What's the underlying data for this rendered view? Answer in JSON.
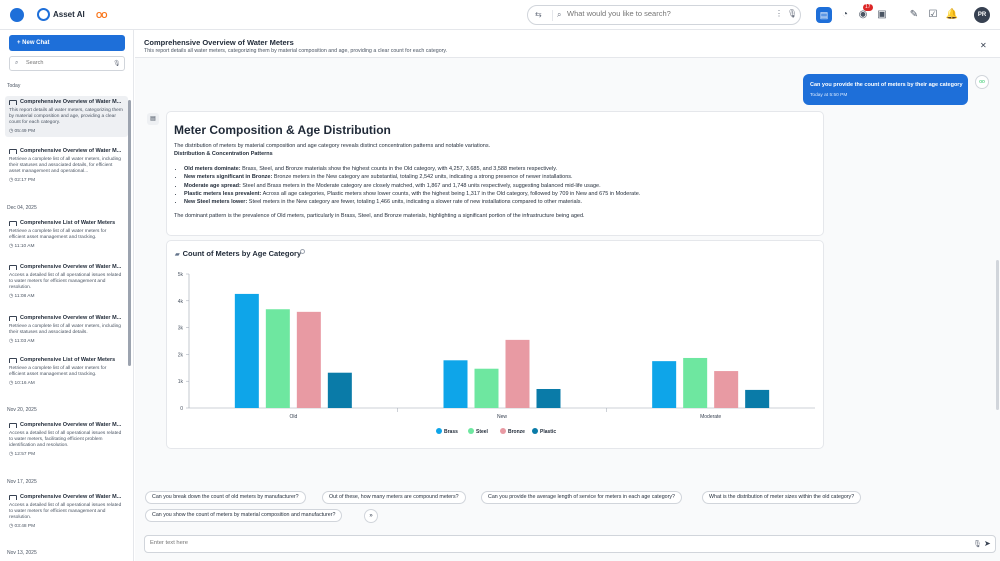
{
  "app": {
    "brand": "Asset AI"
  },
  "search": {
    "placeholder": "What would you like to search?"
  },
  "topbar": {
    "notif_count": "17",
    "avatar": "PR"
  },
  "sidebar": {
    "new_chat": "+ New Chat",
    "search_placeholder": "Search",
    "groups": [
      {
        "label": "Today"
      },
      {
        "label": "Dec 04, 2025"
      },
      {
        "label": "Nov 20, 2025"
      },
      {
        "label": "Nov 17, 2025"
      },
      {
        "label": "Nov 13, 2025"
      }
    ],
    "items": [
      {
        "title": "Comprehensive Overview of Water M...",
        "desc": "This report details all water meters, categorizing them by material composition and age, providing a clear count for each category.",
        "time": "05:49 PM"
      },
      {
        "title": "Comprehensive Overview of Water M...",
        "desc": "Retrieve a complete list of all water meters, including their statuses and associated details, for efficient asset management and operational...",
        "time": "02:17 PM"
      },
      {
        "title": "Comprehensive List of Water Meters",
        "desc": "Retrieve a complete list of all water meters for efficient asset management and tracking.",
        "time": "11:10 AM"
      },
      {
        "title": "Comprehensive Overview of Water M...",
        "desc": "Access a detailed list of all operational issues related to water meters for efficient management and resolution.",
        "time": "11:08 AM"
      },
      {
        "title": "Comprehensive Overview of Water M...",
        "desc": "Retrieve a complete list of all water meters, including their statuses and associated details.",
        "time": "11:03 AM"
      },
      {
        "title": "Comprehensive List of Water Meters",
        "desc": "Retrieve a complete list of all water meters for efficient asset management and tracking.",
        "time": "10:16 AM"
      },
      {
        "title": "Comprehensive Overview of Water M...",
        "desc": "Access a detailed list of all operational issues related to water meters, facilitating efficient problem identification and resolution.",
        "time": "12:57 PM"
      },
      {
        "title": "Comprehensive Overview of Water M...",
        "desc": "Access a detailed list of all operational issues related to water meters for efficient management and resolution.",
        "time": "03:48 PM"
      }
    ]
  },
  "header": {
    "title": "Comprehensive Overview of Water Meters",
    "subtitle": "This report details all water meters, categorizing them by material composition and age, providing a clear count for each category."
  },
  "user_msg": {
    "text": "Can you provide the count of meters by their age category",
    "time": "Today at 5:50 PM"
  },
  "report": {
    "title": "Meter Composition & Age Distribution",
    "intro": "The distribution of meters by material composition and age category reveals distinct concentration patterns and notable variations.",
    "subhead": "Distribution & Concentration Patterns",
    "bullets": [
      {
        "lead": "Old meters dominate:",
        "text": " Brass, Steel, and Bronze materials show the highest counts in the Old category, with 4,257, 3,685, and 3,588 meters respectively."
      },
      {
        "lead": "New meters significant in Bronze:",
        "text": " Bronze meters in the New category are substantial, totaling 2,542 units, indicating a strong presence of newer installations."
      },
      {
        "lead": "Moderate age spread:",
        "text": " Steel and Brass meters in the Moderate category are closely matched, with 1,867 and 1,748 units respectively, suggesting balanced mid-life usage."
      },
      {
        "lead": "Plastic meters less prevalent:",
        "text": " Across all age categories, Plastic meters show lower counts, with the highest being 1,317 in the Old category, followed by 709 in New and 675 in Moderate."
      },
      {
        "lead": "New Steel meters lower:",
        "text": " Steel meters in the New category are fewer, totaling 1,466 units, indicating a slower rate of new installations compared to other materials."
      }
    ],
    "conclusion": "The dominant pattern is the prevalence of Old meters, particularly in Brass, Steel, and Bronze materials, highlighting a significant portion of the infrastructure being aged."
  },
  "chart_data": {
    "type": "bar",
    "title": "Count of Meters by Age Category",
    "categories": [
      "Old",
      "New",
      "Moderate"
    ],
    "series": [
      {
        "name": "Brass",
        "color": "#0ea5e9",
        "values": [
          4257,
          1780,
          1748
        ]
      },
      {
        "name": "Steel",
        "color": "#6ee7a0",
        "values": [
          3685,
          1466,
          1867
        ]
      },
      {
        "name": "Bronze",
        "color": "#e89aa3",
        "values": [
          3588,
          2542,
          1378
        ]
      },
      {
        "name": "Plastic",
        "color": "#0a7ba8",
        "values": [
          1317,
          709,
          675
        ]
      }
    ],
    "ylim": [
      0,
      5000
    ],
    "yticks": [
      0,
      1000,
      2000,
      3000,
      4000,
      5000
    ],
    "ytick_labels": [
      "0",
      "1k",
      "2k",
      "3k",
      "4k",
      "5k"
    ],
    "grid": false,
    "legend": "bottom-center"
  },
  "suggestions": [
    "Can you break down the count of old meters by manufacturer?",
    "Out of these, how many meters are compound meters?",
    "Can you provide the average length of service for meters in each age category?",
    "What is the distribution of meter sizes within the old category?",
    "Can you show the count of meters by material composition and manufacturer?"
  ],
  "composer": {
    "placeholder": "Enter text here"
  }
}
